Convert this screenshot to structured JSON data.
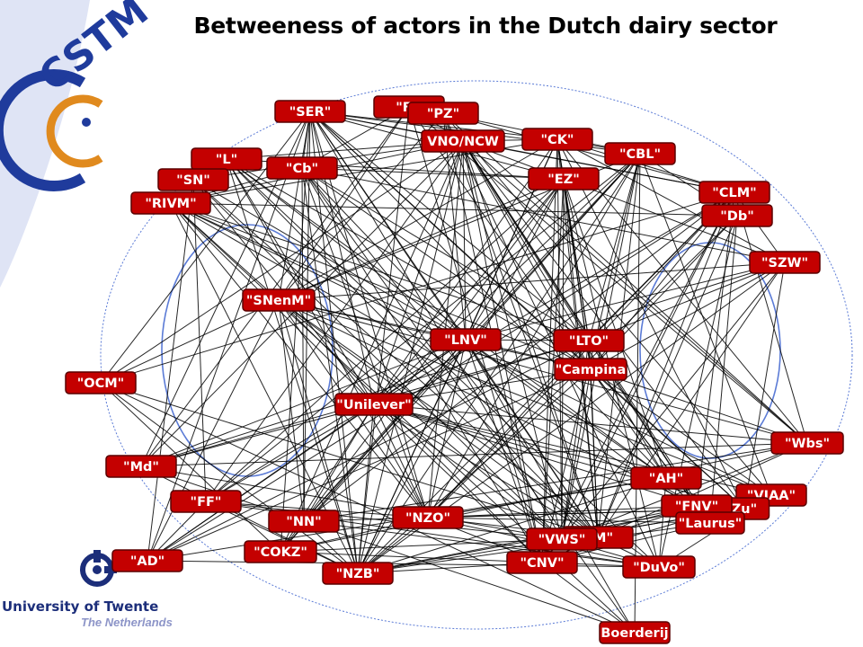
{
  "title": "Betweeness of actors in the Dutch dairy sector",
  "logo": {
    "cstm": "CSTM",
    "university": "University of Twente",
    "country": "The Netherlands"
  },
  "colors": {
    "node": "#c40000",
    "edge": "#000000",
    "ring": "#5b7bd6",
    "brand": "#1f3b9c",
    "accent": "#e08a1e"
  },
  "nodes": [
    {
      "id": "SER",
      "label": "\"SER\""
    },
    {
      "id": "FN",
      "label": "\"FN"
    },
    {
      "id": "PZ",
      "label": "\"PZ\""
    },
    {
      "id": "VNO",
      "label": "VNO/NCW"
    },
    {
      "id": "CK",
      "label": "\"CK\""
    },
    {
      "id": "CBL",
      "label": "\"CBL\""
    },
    {
      "id": "L",
      "label": "\"L\""
    },
    {
      "id": "Cb",
      "label": "\"Cb\""
    },
    {
      "id": "SN",
      "label": "\"SN\""
    },
    {
      "id": "RIVM",
      "label": "\"RIVM\""
    },
    {
      "id": "EZ",
      "label": "\"EZ\""
    },
    {
      "id": "CLM",
      "label": "\"CLM\""
    },
    {
      "id": "Db",
      "label": "\"Db\""
    },
    {
      "id": "SZW",
      "label": "\"SZW\""
    },
    {
      "id": "SNenM",
      "label": "\"SNenM\""
    },
    {
      "id": "LNV",
      "label": "\"LNV\""
    },
    {
      "id": "LTO",
      "label": "\"LTO\""
    },
    {
      "id": "Campina",
      "label": "\"Campina"
    },
    {
      "id": "OCM",
      "label": "\"OCM\""
    },
    {
      "id": "Unilever",
      "label": "\"Unilever\""
    },
    {
      "id": "Wbs",
      "label": "\"Wbs\""
    },
    {
      "id": "Md",
      "label": "\"Md\""
    },
    {
      "id": "AH",
      "label": "\"AH\""
    },
    {
      "id": "FF",
      "label": "\"FF\""
    },
    {
      "id": "VIAA",
      "label": "\"VIAA\""
    },
    {
      "id": "Zu",
      "label": "Zu\""
    },
    {
      "id": "FNV",
      "label": "\"FNV\""
    },
    {
      "id": "Laurus",
      "label": "\"Laurus\""
    },
    {
      "id": "NN",
      "label": "\"NN\""
    },
    {
      "id": "NZO",
      "label": "\"NZO\""
    },
    {
      "id": "DM",
      "label": "DM\""
    },
    {
      "id": "VWS",
      "label": "\"VWS\""
    },
    {
      "id": "AD",
      "label": "\"AD\""
    },
    {
      "id": "COKZ",
      "label": "\"COKZ\""
    },
    {
      "id": "CNV",
      "label": "\"CNV\""
    },
    {
      "id": "DuVo",
      "label": "\"DuVo\""
    },
    {
      "id": "NZB",
      "label": "\"NZB\""
    },
    {
      "id": "Boerderij",
      "label": "Boerderij"
    }
  ]
}
